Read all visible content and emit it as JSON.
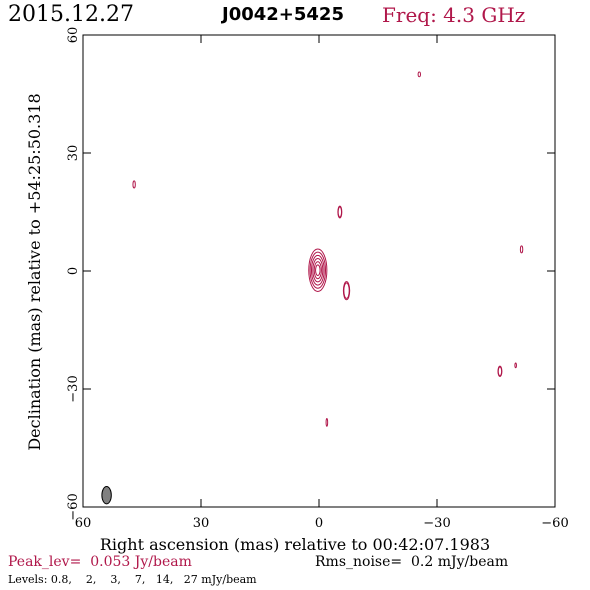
{
  "header": {
    "date": "2015.12.27",
    "source": "J0042+5425",
    "freq": "Freq: 4.3 GHz"
  },
  "footer": {
    "peak": "Peak_lev=  0.053 Jy/beam",
    "rms": "Rms_noise=  0.2 mJy/beam",
    "levels": "Levels: 0.8,    2,    3,    7,   14,   27 mJy/beam"
  },
  "colors": {
    "contour": "#b0174a",
    "beam": "#808080",
    "frame": "#000000"
  },
  "chart_data": {
    "type": "contour",
    "xlabel": "Right ascension (mas) relative to 00:42:07.1983",
    "ylabel": "Declination (mas) relative to +54:25:50.318",
    "xlim": [
      60,
      -60
    ],
    "ylim": [
      -60,
      60
    ],
    "xticks": [
      60,
      30,
      0,
      -30,
      -60
    ],
    "yticks": [
      -60,
      -30,
      0,
      30,
      60
    ],
    "xtick_labels": [
      "60",
      "30",
      "0",
      "−30",
      "−60"
    ],
    "ytick_labels": [
      "−60",
      "−30",
      "0",
      "30",
      "60"
    ],
    "levels_mJy": [
      0.8,
      2,
      3,
      7,
      14,
      27
    ],
    "components": [
      {
        "x": 0.3,
        "y": 0.2,
        "rx": 2.3,
        "ry": 5.4,
        "n": 6
      },
      {
        "x": -7.0,
        "y": -5.0,
        "rx": 0.8,
        "ry": 2.3,
        "n": 2
      },
      {
        "x": -5.3,
        "y": 15.0,
        "rx": 0.5,
        "ry": 1.5,
        "n": 2
      },
      {
        "x": 47.0,
        "y": 22.0,
        "rx": 0.3,
        "ry": 0.9,
        "n": 1
      },
      {
        "x": -25.5,
        "y": 50.0,
        "rx": 0.3,
        "ry": 0.6,
        "n": 1
      },
      {
        "x": -51.5,
        "y": 5.5,
        "rx": 0.3,
        "ry": 0.9,
        "n": 1
      },
      {
        "x": -46.0,
        "y": -25.5,
        "rx": 0.5,
        "ry": 1.3,
        "n": 2
      },
      {
        "x": -50.0,
        "y": -24.0,
        "rx": 0.2,
        "ry": 0.6,
        "n": 1
      },
      {
        "x": -2.0,
        "y": -38.5,
        "rx": 0.2,
        "ry": 1.0,
        "n": 1
      }
    ],
    "beam": {
      "x": 54.0,
      "y": -57.0,
      "rx": 1.2,
      "ry": 2.2
    }
  }
}
